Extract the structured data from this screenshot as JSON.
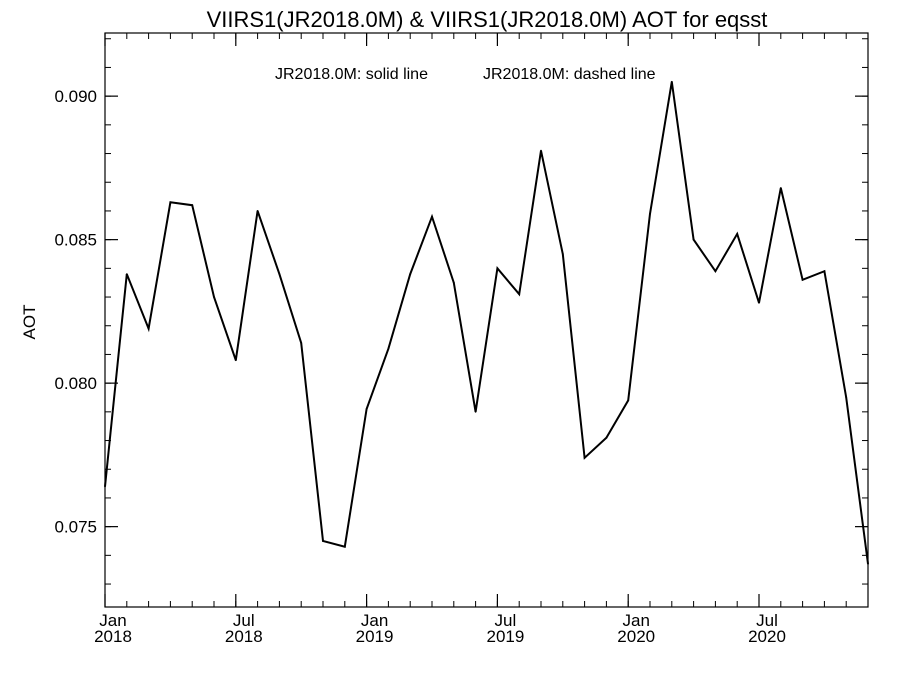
{
  "chart_data": {
    "type": "line",
    "title": "VIIRS1(JR2018.0M) & VIIRS1(JR2018.0M)  AOT for eqsst",
    "annotation_solid": "JR2018.0M: solid line",
    "annotation_dashed": "JR2018.0M: dashed line",
    "xlabel": "",
    "ylabel": "AOT",
    "x_range": [
      "2018-01",
      "2020-12"
    ],
    "ylim": [
      0.0722,
      0.0922
    ],
    "y_ticks": [
      {
        "value": 0.075,
        "label": "0.075"
      },
      {
        "value": 0.08,
        "label": "0.080"
      },
      {
        "value": 0.085,
        "label": "0.085"
      },
      {
        "value": 0.09,
        "label": "0.090"
      }
    ],
    "x_ticks": [
      {
        "month": "2018-01",
        "line1": "Jan",
        "line2": "2018"
      },
      {
        "month": "2018-07",
        "line1": "Jul",
        "line2": "2018"
      },
      {
        "month": "2019-01",
        "line1": "Jan",
        "line2": "2019"
      },
      {
        "month": "2019-07",
        "line1": "Jul",
        "line2": "2019"
      },
      {
        "month": "2020-01",
        "line1": "Jan",
        "line2": "2020"
      },
      {
        "month": "2020-07",
        "line1": "Jul",
        "line2": "2020"
      }
    ],
    "series": [
      {
        "style": "solid",
        "x": [
          "2018-01",
          "2018-02",
          "2018-03",
          "2018-04",
          "2018-05",
          "2018-06",
          "2018-07",
          "2018-08",
          "2018-09",
          "2018-10",
          "2018-11",
          "2018-12",
          "2019-01",
          "2019-02",
          "2019-03",
          "2019-04",
          "2019-05",
          "2019-06",
          "2019-07",
          "2019-08",
          "2019-09",
          "2019-10",
          "2019-11",
          "2019-12",
          "2020-01",
          "2020-02",
          "2020-03",
          "2020-04",
          "2020-05",
          "2020-06",
          "2020-07",
          "2020-08",
          "2020-09",
          "2020-10",
          "2020-11",
          "2020-12"
        ],
        "values": [
          0.0764,
          0.0838,
          0.0819,
          0.0863,
          0.0862,
          0.083,
          0.0808,
          0.086,
          0.0838,
          0.0814,
          0.0745,
          0.0743,
          0.0791,
          0.0812,
          0.0838,
          0.0858,
          0.0835,
          0.079,
          0.084,
          0.0831,
          0.0881,
          0.0845,
          0.0774,
          0.0781,
          0.0794,
          0.0859,
          0.0905,
          0.085,
          0.0839,
          0.0852,
          0.0828,
          0.0868,
          0.0836,
          0.0839,
          0.0795,
          0.0737
        ]
      }
    ],
    "color": "#000000"
  }
}
